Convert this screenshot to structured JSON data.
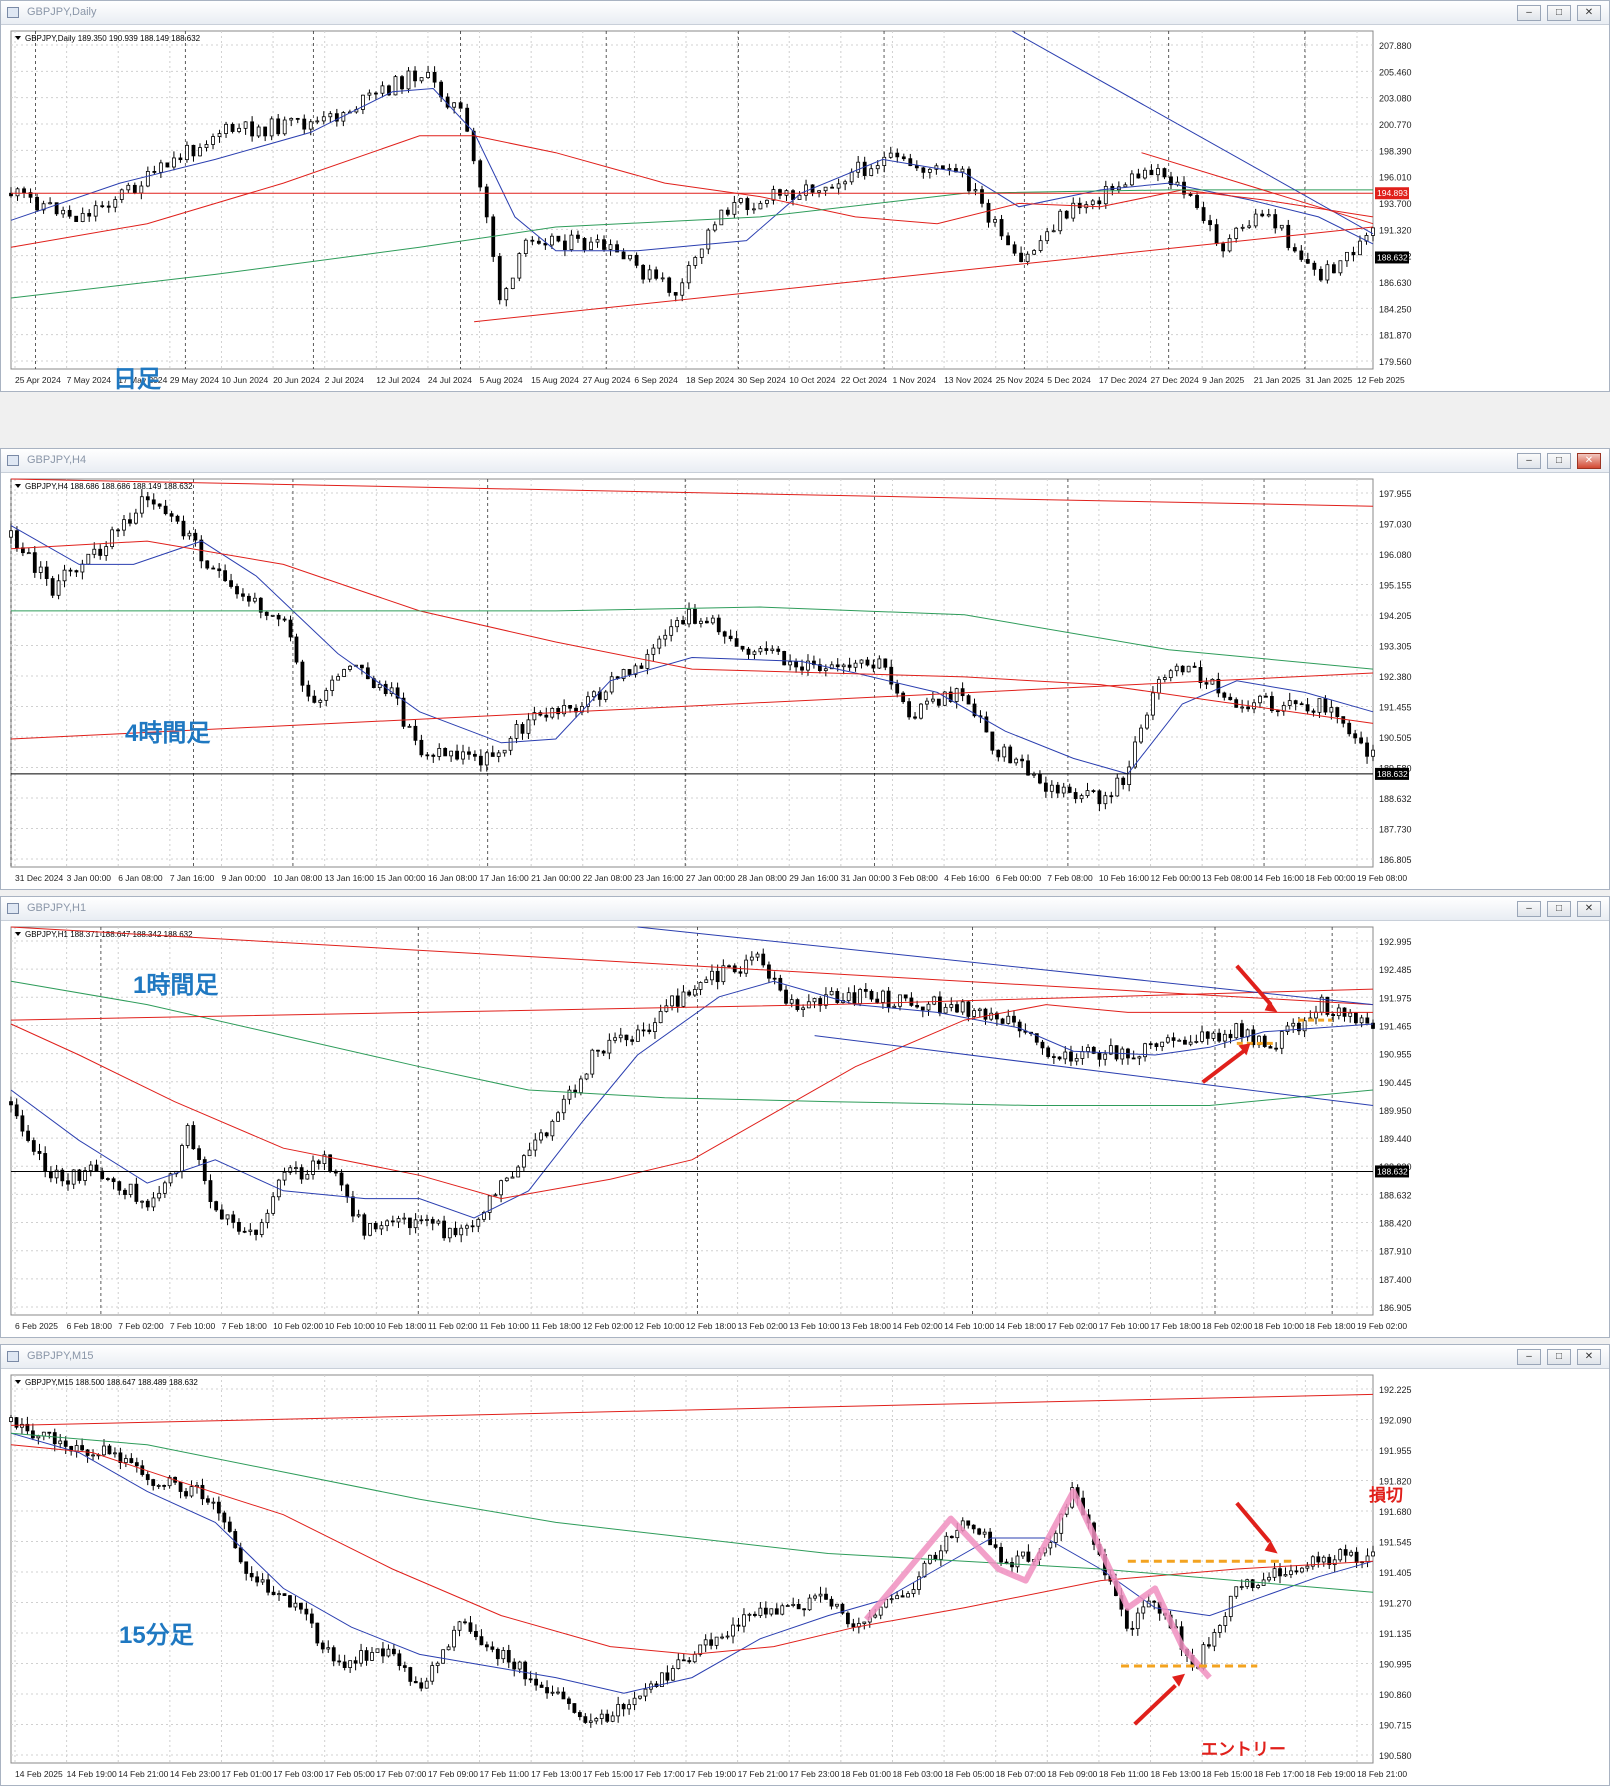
{
  "windows": [
    {
      "id": "daily",
      "title": "GBPJPY,Daily",
      "info_line": "GBPJPY,Daily  189.350 190.939 188.149 188.632",
      "overlay_label": "日足",
      "prices": [
        "207.880",
        "205.460",
        "203.080",
        "200.770",
        "198.390",
        "196.010",
        "193.700",
        "191.320",
        "188.632",
        "186.630",
        "184.250",
        "181.870",
        "179.560"
      ],
      "highlight_prices": [
        {
          "text": "194.893",
          "color": "#e0201b"
        },
        {
          "text": "188.632",
          "color": "#000000"
        }
      ],
      "dates": [
        "25 Apr 2024",
        "7 May 2024",
        "17 May 2024",
        "29 May 2024",
        "10 Jun 2024",
        "20 Jun 2024",
        "2 Jul 2024",
        "12 Jul 2024",
        "24 Jul 2024",
        "5 Aug 2024",
        "15 Aug 2024",
        "27 Aug 2024",
        "6 Sep 2024",
        "18 Sep 2024",
        "30 Sep 2024",
        "10 Oct 2024",
        "22 Oct 2024",
        "1 Nov 2024",
        "13 Nov 2024",
        "25 Nov 2024",
        "5 Dec 2024",
        "17 Dec 2024",
        "27 Dec 2024",
        "9 Jan 2025",
        "21 Jan 2025",
        "31 Jan 2025",
        "12 Feb 2025"
      ]
    },
    {
      "id": "h4",
      "title": "GBPJPY,H4",
      "info_line": "GBPJPY,H4  188.686 188.686 188.149 188.632",
      "overlay_label": "4時間足",
      "prices": [
        "197.955",
        "197.030",
        "196.080",
        "195.155",
        "194.205",
        "193.305",
        "192.380",
        "191.455",
        "190.505",
        "189.580",
        "188.632",
        "187.730",
        "186.805"
      ],
      "highlight_prices": [
        {
          "text": "188.632",
          "color": "#000000"
        }
      ],
      "dates": [
        "31 Dec 2024",
        "3 Jan 00:00",
        "6 Jan 08:00",
        "7 Jan 16:00",
        "9 Jan 00:00",
        "10 Jan 08:00",
        "13 Jan 16:00",
        "15 Jan 00:00",
        "16 Jan 08:00",
        "17 Jan 16:00",
        "21 Jan 00:00",
        "22 Jan 08:00",
        "23 Jan 16:00",
        "27 Jan 00:00",
        "28 Jan 08:00",
        "29 Jan 16:00",
        "31 Jan 00:00",
        "3 Feb 08:00",
        "4 Feb 16:00",
        "6 Feb 00:00",
        "7 Feb 08:00",
        "10 Feb 16:00",
        "12 Feb 00:00",
        "13 Feb 08:00",
        "14 Feb 16:00",
        "18 Feb 00:00",
        "19 Feb 08:00"
      ]
    },
    {
      "id": "h1",
      "title": "GBPJPY,H1",
      "info_line": "GBPJPY,H1  188.371 188.647 188.342 188.632",
      "overlay_label": "1時間足",
      "prices": [
        "192.995",
        "192.485",
        "191.975",
        "191.465",
        "190.955",
        "190.445",
        "189.950",
        "189.440",
        "188.930",
        "188.632",
        "188.420",
        "187.910",
        "187.400",
        "186.905"
      ],
      "highlight_prices": [
        {
          "text": "188.632",
          "color": "#000000"
        }
      ],
      "dates": [
        "6 Feb 2025",
        "6 Feb 18:00",
        "7 Feb 02:00",
        "7 Feb 10:00",
        "7 Feb 18:00",
        "10 Feb 02:00",
        "10 Feb 10:00",
        "10 Feb 18:00",
        "11 Feb 02:00",
        "11 Feb 10:00",
        "11 Feb 18:00",
        "12 Feb 02:00",
        "12 Feb 10:00",
        "12 Feb 18:00",
        "13 Feb 02:00",
        "13 Feb 10:00",
        "13 Feb 18:00",
        "14 Feb 02:00",
        "14 Feb 10:00",
        "14 Feb 18:00",
        "17 Feb 02:00",
        "17 Feb 10:00",
        "17 Feb 18:00",
        "18 Feb 02:00",
        "18 Feb 10:00",
        "18 Feb 18:00",
        "19 Feb 02:00"
      ]
    },
    {
      "id": "m15",
      "title": "GBPJPY,M15",
      "info_line": "GBPJPY,M15  188.500 188.647 188.489 188.632",
      "overlay_label": "15分足",
      "annotation_stop": "損切",
      "annotation_entry": "エントリー",
      "prices": [
        "192.225",
        "192.090",
        "191.955",
        "191.820",
        "191.680",
        "191.545",
        "191.405",
        "191.270",
        "191.135",
        "190.995",
        "190.860",
        "190.715",
        "190.580"
      ],
      "highlight_prices": [],
      "dates": [
        "14 Feb 2025",
        "14 Feb 19:00",
        "14 Feb 21:00",
        "14 Feb 23:00",
        "17 Feb 01:00",
        "17 Feb 03:00",
        "17 Feb 05:00",
        "17 Feb 07:00",
        "17 Feb 09:00",
        "17 Feb 11:00",
        "17 Feb 13:00",
        "17 Feb 15:00",
        "17 Feb 17:00",
        "17 Feb 19:00",
        "17 Feb 21:00",
        "17 Feb 23:00",
        "18 Feb 01:00",
        "18 Feb 03:00",
        "18 Feb 05:00",
        "18 Feb 07:00",
        "18 Feb 09:00",
        "18 Feb 11:00",
        "18 Feb 13:00",
        "18 Feb 15:00",
        "18 Feb 17:00",
        "18 Feb 19:00",
        "18 Feb 21:00"
      ]
    }
  ],
  "colors": {
    "ma_fast": "#2b3fb0",
    "ma_mid": "#e0201b",
    "ma_slow": "#2e9c5a",
    "trend_line": "#2b3fb0",
    "support_line": "#e0201b",
    "pink_zigzag": "#f08fc0",
    "orange_dash": "#f3a320",
    "arrow": "#e0201b",
    "label_blue": "#1f78c1"
  }
}
